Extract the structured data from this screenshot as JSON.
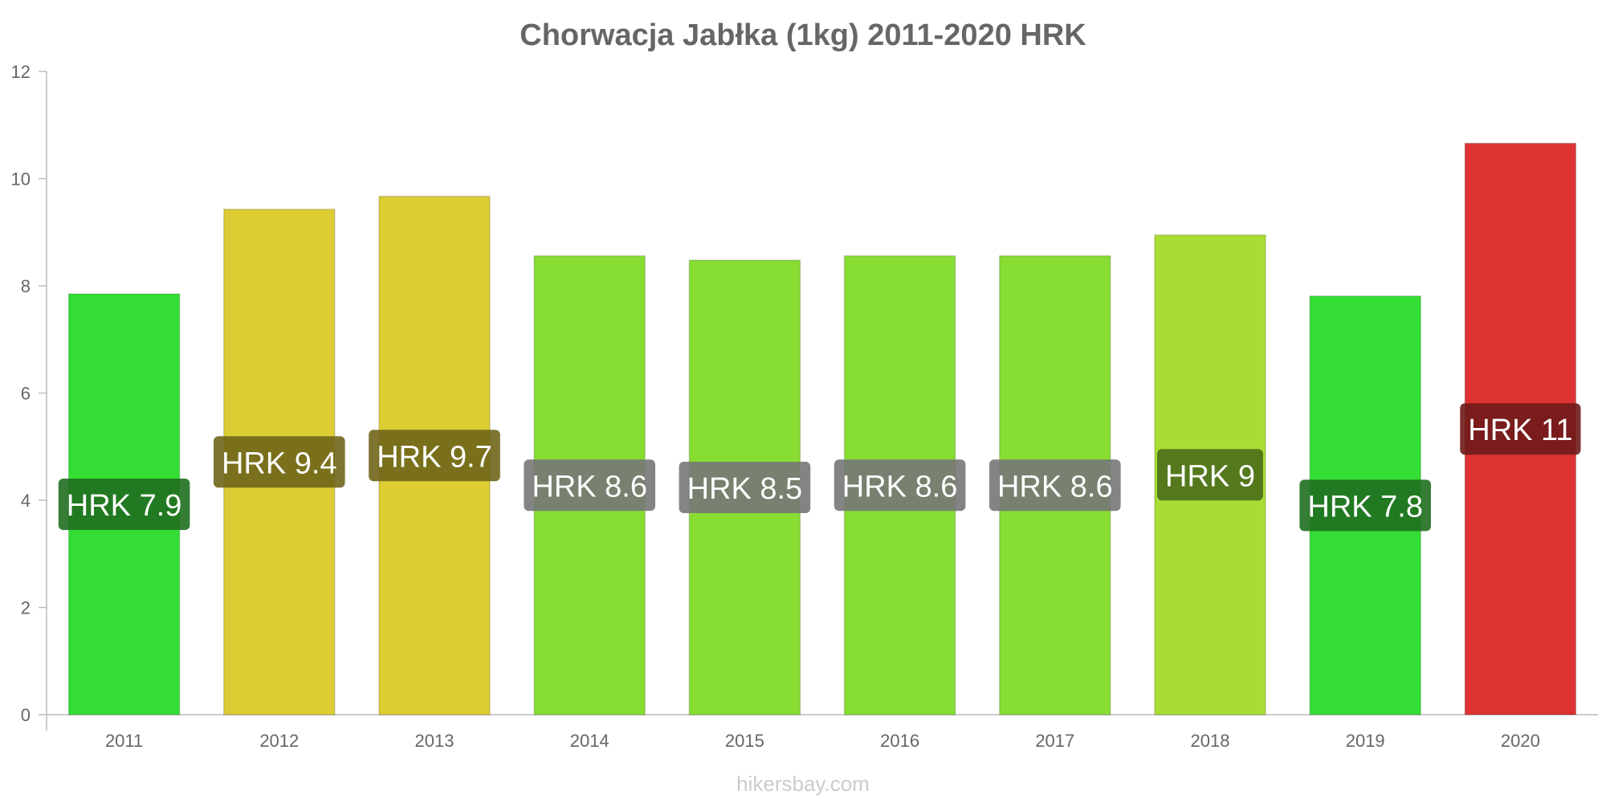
{
  "watermark": "hikersbay.com",
  "chart_data": {
    "type": "bar",
    "title": "Chorwacja Jabłka (1kg) 2011-2020 HRK",
    "xlabel": "",
    "ylabel": "",
    "ylim": [
      0,
      12
    ],
    "yticks": [
      0,
      2,
      4,
      6,
      8,
      10,
      12
    ],
    "grid": false,
    "legend": "none",
    "categories": [
      "2011",
      "2012",
      "2013",
      "2014",
      "2015",
      "2016",
      "2017",
      "2018",
      "2019",
      "2020"
    ],
    "values": [
      7.85,
      9.43,
      9.67,
      8.56,
      8.48,
      8.56,
      8.56,
      8.95,
      7.81,
      10.66
    ],
    "data_labels": [
      "HRK 7.9",
      "HRK 9.4",
      "HRK 9.7",
      "HRK 8.6",
      "HRK 8.5",
      "HRK 8.6",
      "HRK 8.6",
      "HRK 9",
      "HRK 7.8",
      "HRK 11"
    ],
    "bar_colors": [
      "#33dd33",
      "#dbcd33",
      "#dbcd33",
      "#88dd33",
      "#88dd33",
      "#88dd33",
      "#88dd33",
      "#aadd33",
      "#33dd33",
      "#dd3333"
    ],
    "label_box_colors": [
      "#1f6f1f",
      "#6f661a",
      "#6f661a",
      "#777777",
      "#777777",
      "#777777",
      "#777777",
      "#4a6d1a",
      "#1f6f1f",
      "#6f1a1a"
    ]
  }
}
